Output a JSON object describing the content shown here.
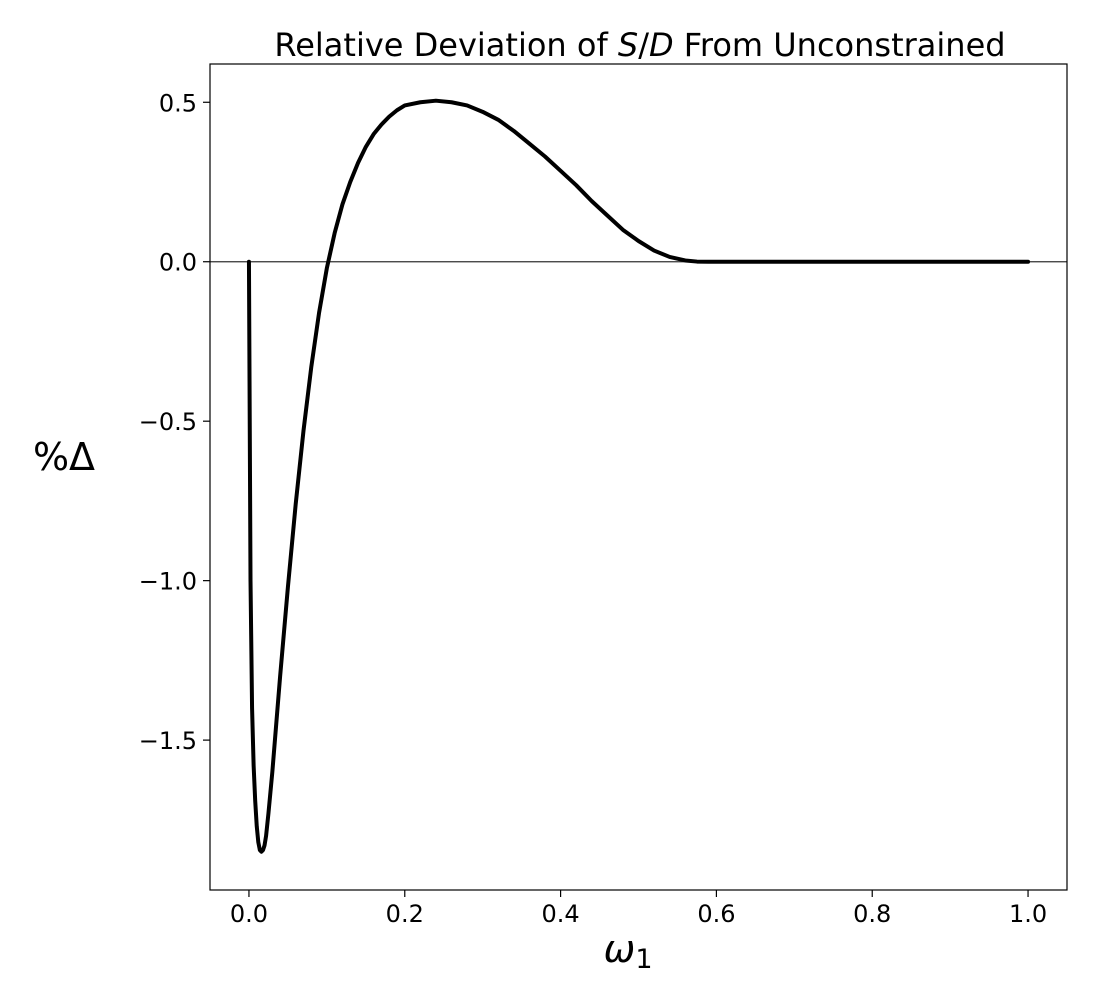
{
  "chart_data": {
    "type": "line",
    "title": {
      "prefix": "Relative Deviation of ",
      "italic": "S",
      "slash": "/",
      "italic2": "D",
      "suffix": " From Unconstrained"
    },
    "xlabel": {
      "symbol": "ω",
      "subscript": "1"
    },
    "ylabel": "%Δ",
    "xlim": [
      -0.05,
      1.05
    ],
    "ylim": [
      -1.97,
      0.62
    ],
    "x_ticks": [
      0.0,
      0.2,
      0.4,
      0.6,
      0.8,
      1.0
    ],
    "x_tick_labels": [
      "0.0",
      "0.2",
      "0.4",
      "0.6",
      "0.8",
      "1.0"
    ],
    "y_ticks": [
      0.5,
      0.0,
      -0.5,
      -1.0,
      -1.5
    ],
    "y_tick_labels": [
      "0.5",
      "0.0",
      "−0.5",
      "−1.0",
      "−1.5"
    ],
    "reference_line": {
      "y": 0.0
    },
    "grid": false,
    "legend": "none",
    "colors": {
      "series": "#000000",
      "reference": "#333333",
      "frame": "#000000"
    },
    "series": [
      {
        "x": [
          0.0,
          0.001,
          0.002,
          0.004,
          0.006,
          0.008,
          0.01,
          0.012,
          0.014,
          0.016,
          0.018,
          0.02,
          0.022,
          0.025,
          0.03,
          0.035,
          0.04,
          0.05,
          0.06,
          0.07,
          0.08,
          0.09,
          0.1,
          0.11,
          0.12,
          0.13,
          0.14,
          0.15,
          0.16,
          0.17,
          0.18,
          0.19,
          0.2,
          0.22,
          0.24,
          0.26,
          0.28,
          0.3,
          0.32,
          0.34,
          0.36,
          0.38,
          0.4,
          0.42,
          0.44,
          0.46,
          0.48,
          0.5,
          0.52,
          0.54,
          0.56,
          0.575,
          0.59,
          0.6,
          0.7,
          0.8,
          0.9,
          1.0
        ],
        "y": [
          0.0,
          -0.5,
          -1.0,
          -1.4,
          -1.58,
          -1.69,
          -1.77,
          -1.82,
          -1.845,
          -1.85,
          -1.845,
          -1.83,
          -1.8,
          -1.73,
          -1.6,
          -1.45,
          -1.3,
          -1.02,
          -0.76,
          -0.53,
          -0.33,
          -0.16,
          -0.02,
          0.09,
          0.18,
          0.25,
          0.31,
          0.36,
          0.4,
          0.43,
          0.455,
          0.475,
          0.49,
          0.5,
          0.505,
          0.5,
          0.49,
          0.47,
          0.445,
          0.41,
          0.37,
          0.33,
          0.285,
          0.24,
          0.19,
          0.145,
          0.1,
          0.065,
          0.035,
          0.015,
          0.004,
          0.0005,
          0.0,
          0.0,
          0.0,
          0.0,
          0.0,
          0.0
        ]
      }
    ]
  }
}
